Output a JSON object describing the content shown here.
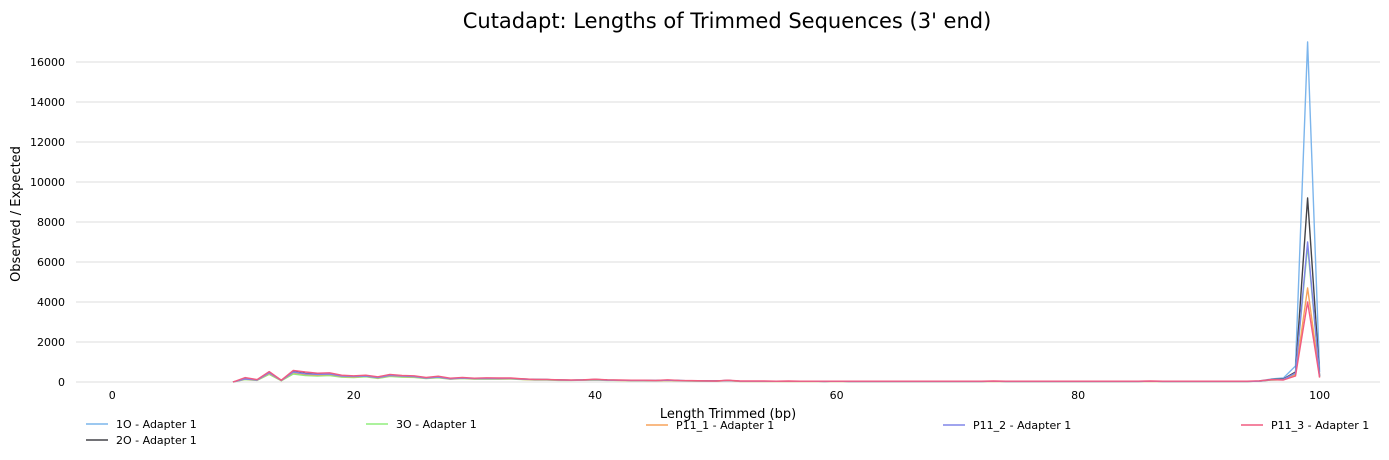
{
  "chart_data": {
    "type": "line",
    "title": "Cutadapt: Lengths of Trimmed Sequences (3' end)",
    "xlabel": "Length Trimmed (bp)",
    "ylabel": "Observed / Expected",
    "xlim": [
      -3,
      105
    ],
    "ylim": [
      0,
      17000
    ],
    "xticks": [
      0,
      20,
      40,
      60,
      80,
      100
    ],
    "yticks": [
      0,
      2000,
      4000,
      6000,
      8000,
      10000,
      12000,
      14000,
      16000
    ],
    "grid": "horizontal",
    "legend_position": "bottom",
    "x": [
      10,
      11,
      12,
      13,
      14,
      15,
      16,
      17,
      18,
      19,
      20,
      21,
      22,
      23,
      24,
      25,
      26,
      27,
      28,
      29,
      30,
      31,
      32,
      33,
      34,
      35,
      36,
      37,
      38,
      39,
      40,
      41,
      42,
      43,
      44,
      45,
      46,
      47,
      48,
      49,
      50,
      51,
      52,
      53,
      54,
      55,
      56,
      57,
      58,
      59,
      60,
      61,
      62,
      63,
      64,
      65,
      66,
      67,
      68,
      69,
      70,
      71,
      72,
      73,
      74,
      75,
      76,
      77,
      78,
      79,
      80,
      81,
      82,
      83,
      84,
      85,
      86,
      87,
      88,
      89,
      90,
      91,
      92,
      93,
      94,
      95,
      96,
      97,
      98,
      99,
      100
    ],
    "series": [
      {
        "name": "1O - Adapter 1",
        "color": "#7cb5ec",
        "values": [
          0,
          150,
          100,
          450,
          80,
          500,
          420,
          380,
          400,
          300,
          280,
          300,
          220,
          330,
          300,
          270,
          200,
          250,
          160,
          200,
          170,
          180,
          170,
          180,
          140,
          120,
          120,
          100,
          90,
          100,
          120,
          90,
          90,
          80,
          80,
          70,
          90,
          70,
          60,
          50,
          50,
          80,
          40,
          40,
          40,
          40,
          40,
          40,
          40,
          30,
          40,
          30,
          30,
          30,
          30,
          30,
          30,
          30,
          30,
          30,
          30,
          30,
          30,
          40,
          30,
          30,
          30,
          30,
          30,
          30,
          30,
          30,
          30,
          30,
          30,
          30,
          40,
          30,
          30,
          30,
          30,
          30,
          30,
          30,
          30,
          50,
          150,
          200,
          800,
          17000,
          500
        ]
      },
      {
        "name": "2O - Adapter 1",
        "color": "#434348",
        "values": [
          0,
          160,
          100,
          480,
          80,
          520,
          430,
          400,
          420,
          300,
          290,
          320,
          230,
          340,
          300,
          280,
          210,
          260,
          170,
          200,
          180,
          190,
          180,
          180,
          150,
          130,
          120,
          100,
          90,
          100,
          130,
          100,
          90,
          80,
          80,
          70,
          90,
          70,
          60,
          50,
          50,
          80,
          40,
          40,
          40,
          40,
          40,
          40,
          40,
          30,
          40,
          30,
          30,
          30,
          30,
          30,
          30,
          30,
          30,
          30,
          30,
          30,
          30,
          40,
          30,
          30,
          30,
          30,
          30,
          30,
          30,
          30,
          30,
          30,
          30,
          30,
          40,
          30,
          30,
          30,
          30,
          30,
          30,
          30,
          30,
          40,
          120,
          150,
          500,
          9200,
          300
        ]
      },
      {
        "name": "3O - Adapter 1",
        "color": "#90ed7d",
        "values": [
          0,
          120,
          80,
          380,
          60,
          400,
          320,
          300,
          320,
          240,
          220,
          260,
          180,
          280,
          240,
          230,
          170,
          210,
          140,
          170,
          140,
          150,
          140,
          150,
          120,
          100,
          100,
          80,
          80,
          90,
          100,
          80,
          80,
          70,
          70,
          60,
          80,
          60,
          50,
          40,
          40,
          70,
          30,
          30,
          30,
          30,
          30,
          30,
          30,
          30,
          30,
          30,
          30,
          30,
          30,
          30,
          30,
          30,
          30,
          30,
          30,
          30,
          30,
          30,
          30,
          30,
          30,
          30,
          30,
          30,
          30,
          30,
          30,
          30,
          30,
          30,
          30,
          30,
          30,
          30,
          30,
          30,
          30,
          30,
          30,
          40,
          100,
          120,
          400,
          6800,
          250
        ]
      },
      {
        "name": "P11_1 - Adapter 1",
        "color": "#f7a35c",
        "values": [
          0,
          140,
          90,
          430,
          70,
          470,
          380,
          350,
          380,
          280,
          260,
          290,
          210,
          310,
          280,
          260,
          190,
          240,
          150,
          190,
          160,
          170,
          160,
          170,
          130,
          110,
          110,
          90,
          90,
          90,
          110,
          90,
          80,
          70,
          70,
          60,
          80,
          60,
          50,
          40,
          40,
          70,
          30,
          30,
          30,
          30,
          30,
          30,
          30,
          30,
          30,
          30,
          30,
          30,
          30,
          30,
          30,
          30,
          30,
          30,
          30,
          30,
          30,
          30,
          30,
          30,
          30,
          30,
          30,
          30,
          30,
          30,
          30,
          30,
          30,
          30,
          30,
          30,
          30,
          30,
          30,
          30,
          30,
          30,
          30,
          40,
          100,
          110,
          350,
          4700,
          250
        ]
      },
      {
        "name": "P11_2 - Adapter 1",
        "color": "#8085e9",
        "values": [
          0,
          150,
          100,
          460,
          80,
          500,
          410,
          380,
          400,
          300,
          280,
          300,
          220,
          330,
          300,
          270,
          200,
          250,
          160,
          200,
          170,
          180,
          170,
          180,
          140,
          120,
          120,
          100,
          90,
          100,
          120,
          90,
          90,
          80,
          80,
          70,
          90,
          70,
          60,
          50,
          50,
          80,
          40,
          40,
          40,
          40,
          40,
          40,
          40,
          30,
          40,
          30,
          30,
          30,
          30,
          30,
          30,
          30,
          30,
          30,
          30,
          30,
          30,
          40,
          30,
          30,
          30,
          30,
          30,
          30,
          30,
          30,
          30,
          30,
          30,
          30,
          40,
          30,
          30,
          30,
          30,
          30,
          30,
          30,
          30,
          40,
          110,
          130,
          450,
          7000,
          280
        ]
      },
      {
        "name": "P11_3 - Adapter 1",
        "color": "#f15c80",
        "values": [
          0,
          220,
          120,
          520,
          90,
          580,
          500,
          440,
          460,
          340,
          310,
          340,
          260,
          380,
          330,
          310,
          230,
          290,
          190,
          230,
          190,
          210,
          200,
          200,
          160,
          130,
          130,
          110,
          100,
          110,
          140,
          110,
          100,
          90,
          90,
          80,
          110,
          80,
          70,
          60,
          50,
          90,
          50,
          50,
          50,
          40,
          50,
          40,
          40,
          40,
          40,
          40,
          40,
          40,
          40,
          40,
          40,
          40,
          40,
          40,
          40,
          40,
          40,
          50,
          40,
          40,
          40,
          40,
          40,
          40,
          40,
          40,
          40,
          40,
          40,
          40,
          50,
          40,
          40,
          40,
          40,
          40,
          40,
          40,
          40,
          60,
          120,
          100,
          300,
          4000,
          220
        ]
      }
    ]
  }
}
